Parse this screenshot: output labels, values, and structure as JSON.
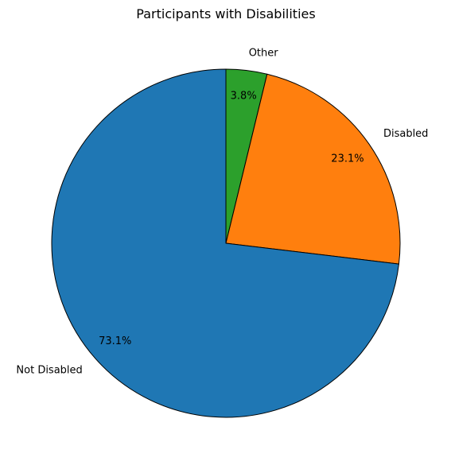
{
  "chart_data": {
    "type": "pie",
    "title": "Participants with Disabilities",
    "start_angle_deg": 90,
    "direction": "clockwise",
    "edge_color": "#000000",
    "slices": [
      {
        "label": "Other",
        "value": 3.8,
        "pct_text": "3.8%",
        "color": "#2ca02c"
      },
      {
        "label": "Disabled",
        "value": 23.1,
        "pct_text": "23.1%",
        "color": "#ff7f0e"
      },
      {
        "label": "Not Disabled",
        "value": 73.1,
        "pct_text": "73.1%",
        "color": "#1f77b4"
      }
    ]
  }
}
